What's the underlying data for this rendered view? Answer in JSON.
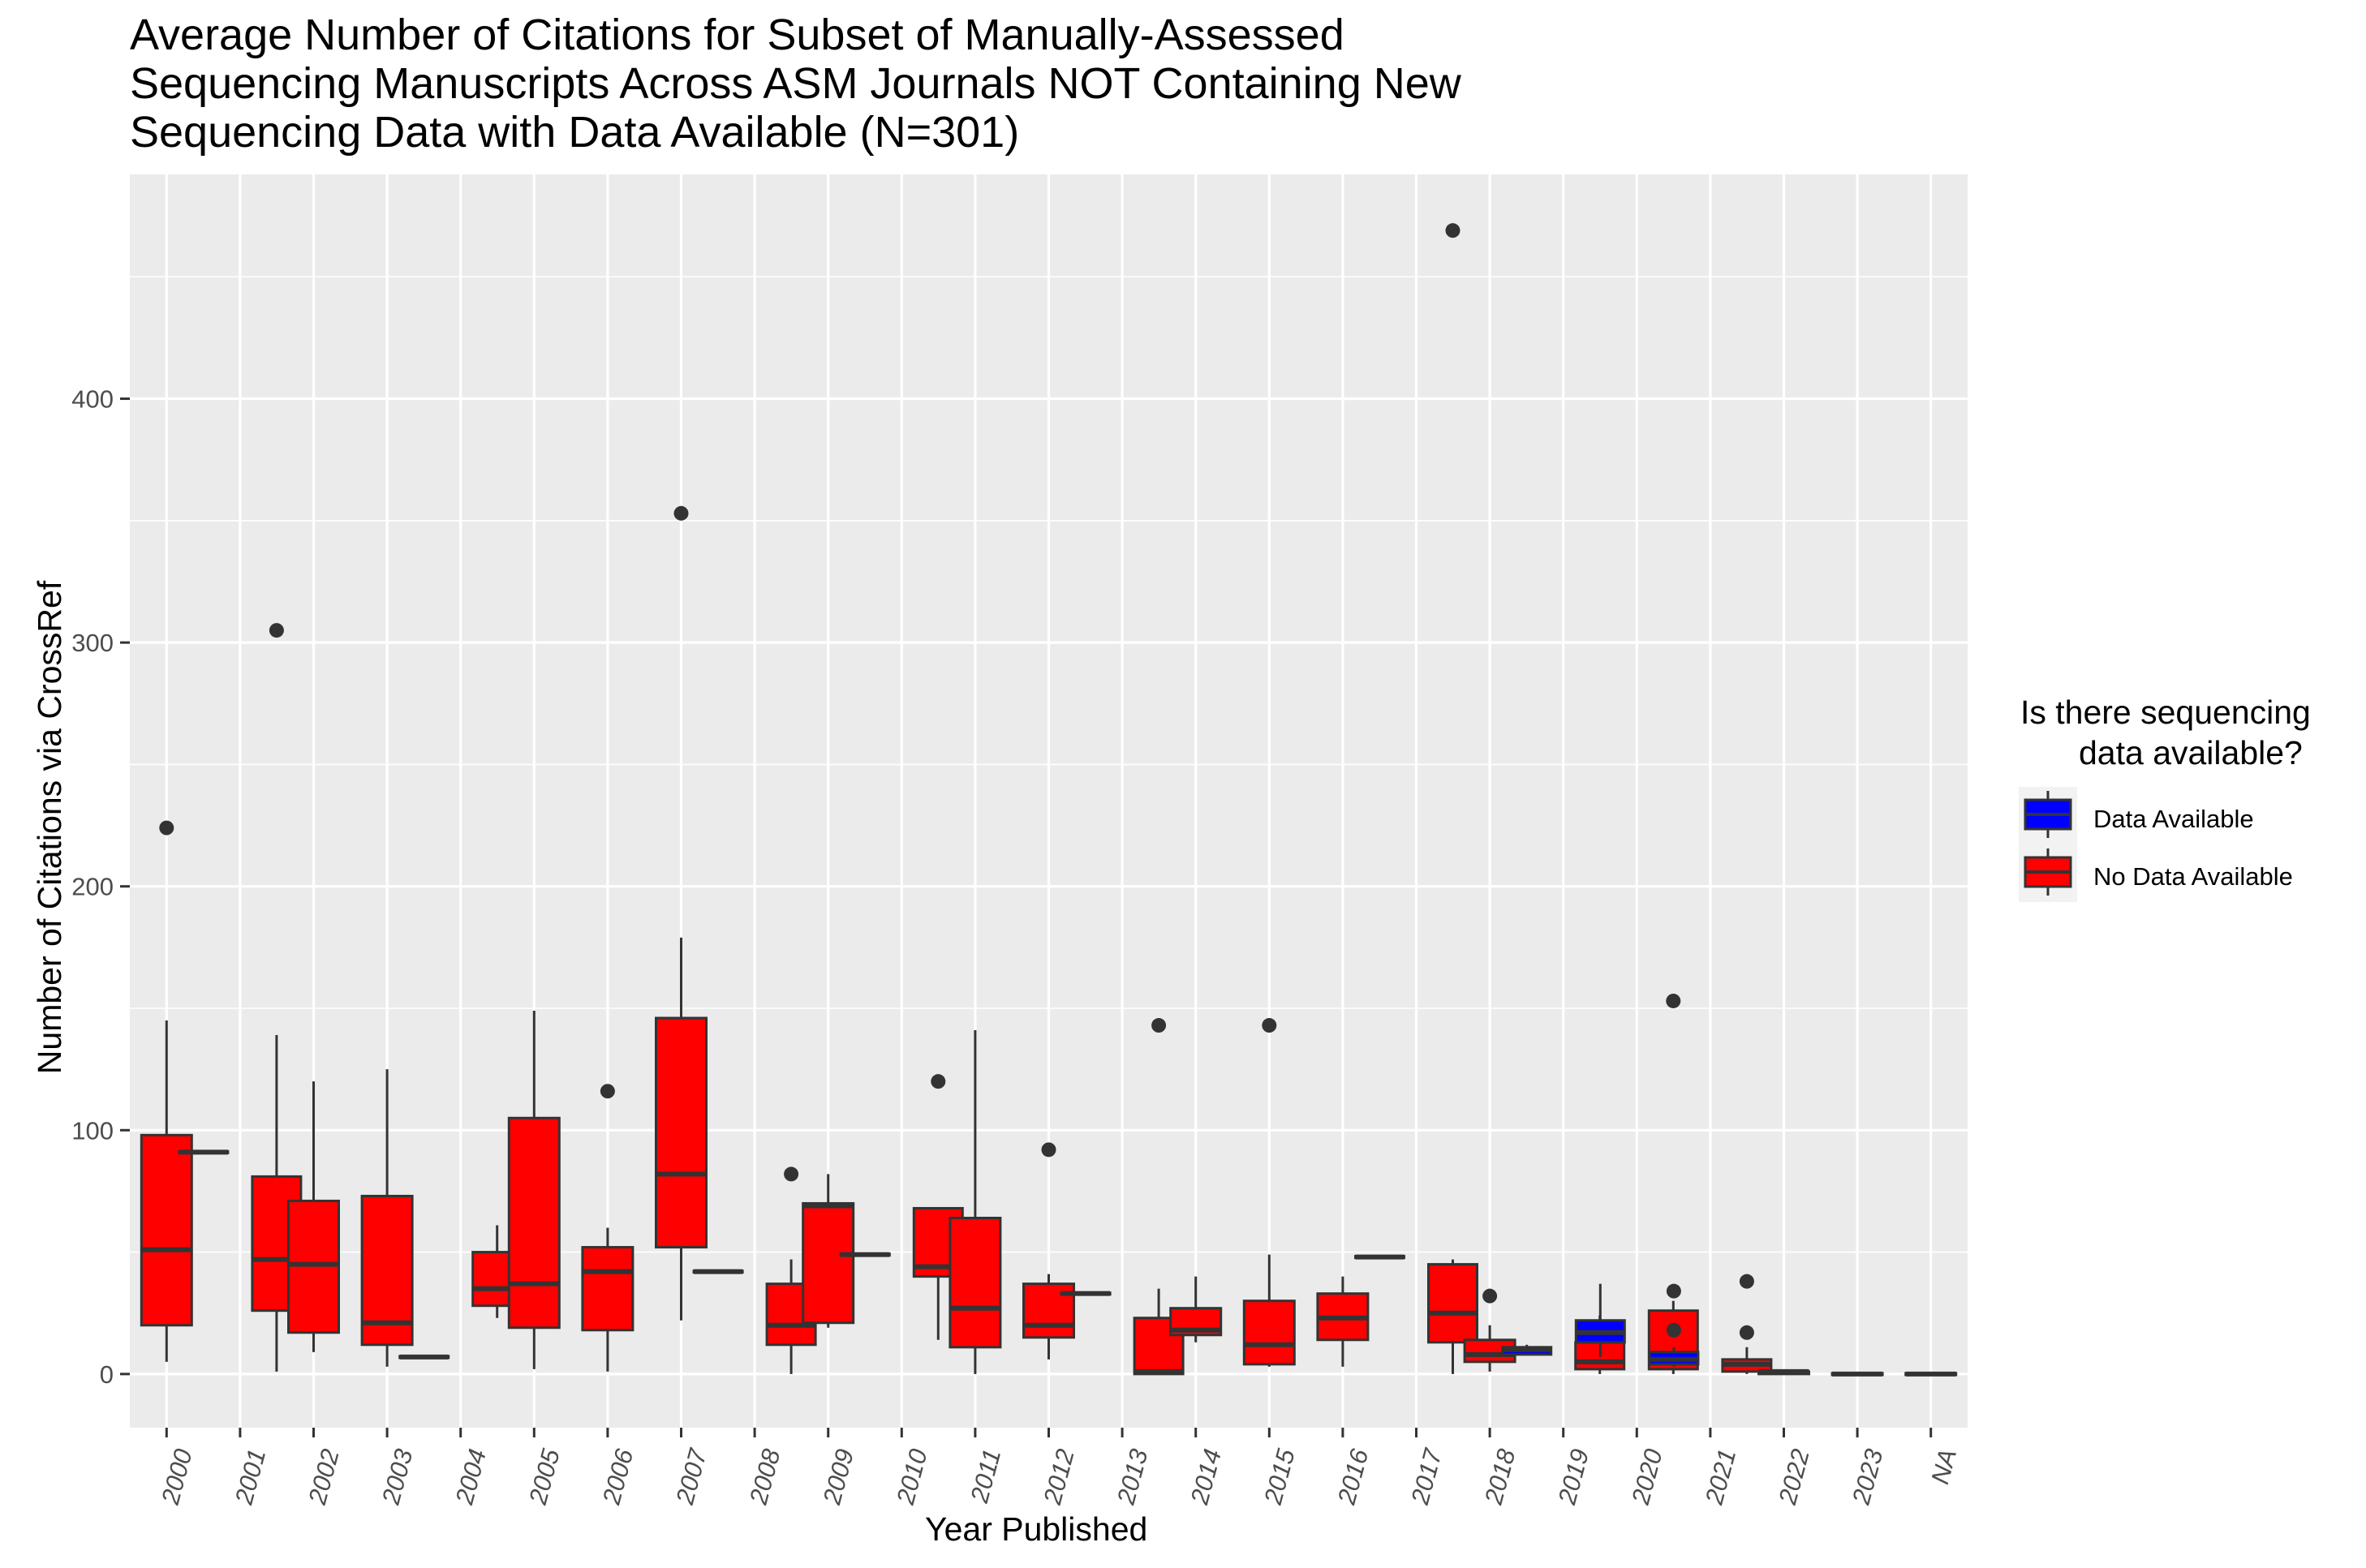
{
  "title_lines": [
    "Average Number of Citations for Subset of Manually-Assessed",
    "Sequencing Manuscripts Across ASM Journals NOT Containing New",
    "Sequencing Data with Data Available (N=301)"
  ],
  "legend": {
    "title_lines": [
      "Is there sequencing",
      "data available?"
    ],
    "items": [
      {
        "label": "Data Available",
        "color": "#0000FF"
      },
      {
        "label": "No Data Available",
        "color": "#FF0000"
      }
    ]
  },
  "colors": {
    "panel_bg": "#EBEBEB",
    "grid": "#FFFFFF",
    "box_outline": "#333333",
    "data_available": "#0000FF",
    "no_data_available": "#FF0000"
  },
  "chart_data": {
    "type": "boxplot",
    "title": "Average Number of Citations for Subset of Manually-Assessed Sequencing Manuscripts Across ASM Journals NOT Containing New Sequencing Data with Data Available (N=301)",
    "xlabel": "Year Published",
    "ylabel": "Number of Citations via CrossRef",
    "ylim": [
      -22,
      492
    ],
    "yticks": [
      0,
      100,
      200,
      300,
      400
    ],
    "categories": [
      "2000",
      "2001",
      "2002",
      "2003",
      "2004",
      "2005",
      "2006",
      "2007",
      "2008",
      "2009",
      "2010",
      "2011",
      "2012",
      "2013",
      "2014",
      "2015",
      "2016",
      "2017",
      "2018",
      "2019",
      "2020",
      "2021",
      "2022",
      "2023",
      "NA"
    ],
    "grid": true,
    "legend_position": "right",
    "boxes": [
      {
        "category": "2000",
        "group": "No Data Available",
        "min": 5,
        "q1": 20,
        "median": 51,
        "q3": 98,
        "max": 145,
        "outliers": [
          224
        ]
      },
      {
        "category": "2001",
        "group": "Data Available",
        "min": 91,
        "q1": 91,
        "median": 91,
        "q3": 91,
        "max": 91,
        "outliers": []
      },
      {
        "category": "2001",
        "group": "No Data Available",
        "min": 1,
        "q1": 26,
        "median": 47,
        "q3": 81,
        "max": 139,
        "outliers": [
          305
        ]
      },
      {
        "category": "2002",
        "group": "No Data Available",
        "min": 9,
        "q1": 17,
        "median": 45,
        "q3": 71,
        "max": 120,
        "outliers": []
      },
      {
        "category": "2003",
        "group": "No Data Available",
        "min": 3,
        "q1": 12,
        "median": 21,
        "q3": 73,
        "max": 125,
        "outliers": []
      },
      {
        "category": "2004",
        "group": "Data Available",
        "min": 7,
        "q1": 7,
        "median": 7,
        "q3": 7,
        "max": 7,
        "outliers": []
      },
      {
        "category": "2004",
        "group": "No Data Available",
        "min": 23,
        "q1": 28,
        "median": 35,
        "q3": 50,
        "max": 61,
        "outliers": []
      },
      {
        "category": "2005",
        "group": "No Data Available",
        "min": 2,
        "q1": 19,
        "median": 37,
        "q3": 105,
        "max": 149,
        "outliers": []
      },
      {
        "category": "2006",
        "group": "No Data Available",
        "min": 1,
        "q1": 18,
        "median": 42,
        "q3": 52,
        "max": 60,
        "outliers": [
          116
        ]
      },
      {
        "category": "2007",
        "group": "No Data Available",
        "min": 22,
        "q1": 52,
        "median": 82,
        "q3": 146,
        "max": 179,
        "outliers": [
          353
        ]
      },
      {
        "category": "2008",
        "group": "Data Available",
        "min": 42,
        "q1": 42,
        "median": 42,
        "q3": 42,
        "max": 42,
        "outliers": []
      },
      {
        "category": "2008",
        "group": "No Data Available",
        "min": 0,
        "q1": 12,
        "median": 20,
        "q3": 37,
        "max": 47,
        "outliers": [
          82
        ]
      },
      {
        "category": "2009",
        "group": "No Data Available",
        "min": 19,
        "q1": 21,
        "median": 69,
        "q3": 70,
        "max": 82,
        "outliers": []
      },
      {
        "category": "2010",
        "group": "Data Available",
        "min": 49,
        "q1": 49,
        "median": 49,
        "q3": 49,
        "max": 49,
        "outliers": []
      },
      {
        "category": "2010",
        "group": "No Data Available",
        "min": 14,
        "q1": 40,
        "median": 44,
        "q3": 68,
        "max": 68,
        "outliers": [
          120
        ]
      },
      {
        "category": "2011",
        "group": "No Data Available",
        "min": 0,
        "q1": 11,
        "median": 27,
        "q3": 64,
        "max": 141,
        "outliers": []
      },
      {
        "category": "2012",
        "group": "No Data Available",
        "min": 6,
        "q1": 15,
        "median": 20,
        "q3": 37,
        "max": 41,
        "outliers": [
          92
        ]
      },
      {
        "category": "2013",
        "group": "Data Available",
        "min": 33,
        "q1": 33,
        "median": 33,
        "q3": 33,
        "max": 33,
        "outliers": []
      },
      {
        "category": "2013",
        "group": "No Data Available",
        "min": 0,
        "q1": 0,
        "median": 1,
        "q3": 23,
        "max": 35,
        "outliers": [
          143
        ]
      },
      {
        "category": "2014",
        "group": "No Data Available",
        "min": 13,
        "q1": 16,
        "median": 18,
        "q3": 27,
        "max": 40,
        "outliers": []
      },
      {
        "category": "2015",
        "group": "No Data Available",
        "min": 3,
        "q1": 4,
        "median": 12,
        "q3": 30,
        "max": 49,
        "outliers": [
          143
        ]
      },
      {
        "category": "2016",
        "group": "No Data Available",
        "min": 3,
        "q1": 14,
        "median": 23,
        "q3": 33,
        "max": 40,
        "outliers": []
      },
      {
        "category": "2017",
        "group": "Data Available",
        "min": 48,
        "q1": 48,
        "median": 48,
        "q3": 48,
        "max": 48,
        "outliers": []
      },
      {
        "category": "2017",
        "group": "No Data Available",
        "min": 0,
        "q1": 13,
        "median": 25,
        "q3": 45,
        "max": 47,
        "outliers": [
          469
        ]
      },
      {
        "category": "2018",
        "group": "No Data Available",
        "min": 1,
        "q1": 5,
        "median": 8,
        "q3": 14,
        "max": 20,
        "outliers": [
          32
        ]
      },
      {
        "category": "2019",
        "group": "Data Available",
        "min": 8,
        "q1": 8,
        "median": 10,
        "q3": 11,
        "max": 12,
        "outliers": []
      },
      {
        "category": "2019",
        "group": "No Data Available",
        "min": 0,
        "q1": 2,
        "median": 5,
        "q3": 13,
        "max": 24,
        "outliers": []
      },
      {
        "category": "2020",
        "group": "Data Available",
        "min": 7,
        "q1": 13,
        "median": 17,
        "q3": 22,
        "max": 37,
        "outliers": []
      },
      {
        "category": "2020",
        "group": "No Data Available",
        "min": 0,
        "q1": 2,
        "median": 6,
        "q3": 26,
        "max": 30,
        "outliers": [
          153
        ]
      },
      {
        "category": "2021",
        "group": "Data Available",
        "min": 3,
        "q1": 4,
        "median": 6,
        "q3": 9,
        "max": 11,
        "outliers": [
          18,
          34
        ]
      },
      {
        "category": "2021",
        "group": "No Data Available",
        "min": 0,
        "q1": 1,
        "median": 4,
        "q3": 6,
        "max": 11,
        "outliers": [
          17,
          38
        ]
      },
      {
        "category": "2022",
        "group": "No Data Available",
        "min": 0,
        "q1": 0,
        "median": 1,
        "q3": 1,
        "max": 1,
        "outliers": []
      },
      {
        "category": "2023",
        "group": "No Data Available",
        "min": 0,
        "q1": 0,
        "median": 0,
        "q3": 0,
        "max": 0,
        "outliers": []
      },
      {
        "category": "NA",
        "group": "No Data Available",
        "min": 0,
        "q1": 0,
        "median": 0,
        "q3": 0,
        "max": 0,
        "outliers": []
      }
    ]
  }
}
